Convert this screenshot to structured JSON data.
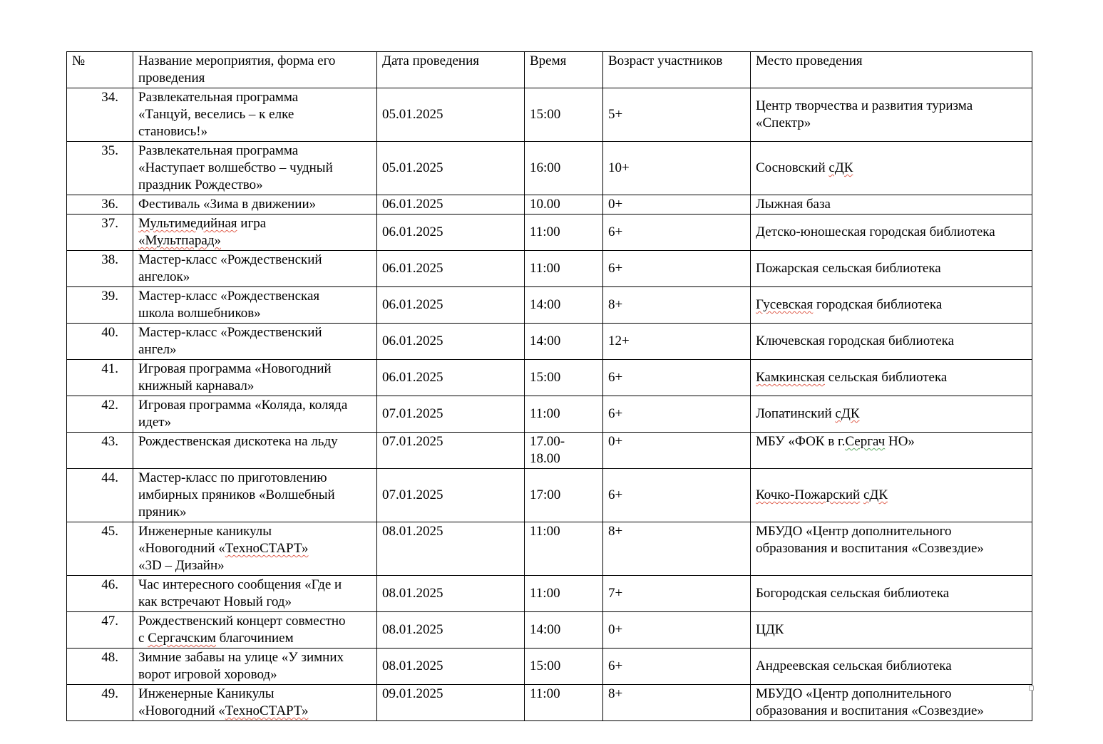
{
  "colors": {
    "page_background": "#ffffff",
    "text": "#000000",
    "table_border": "#000000",
    "spellcheck_red": "#e0604f",
    "grammar_green": "#5aa860",
    "resize_handle_border": "#a6a6a6"
  },
  "table": {
    "headers": [
      "№",
      "Название мероприятия, форма его проведения",
      "Дата проведения",
      "Время",
      "Возраст участников",
      "Место проведения"
    ],
    "rows": [
      {
        "num": "34.",
        "title": [
          [
            {
              "t": "Развлекательная программа"
            }
          ],
          [
            {
              "t": "«Танцуй, веселись – к елке"
            }
          ],
          [
            {
              "t": "становись!»"
            }
          ]
        ],
        "date": "05.01.2025",
        "time": [
          "15:00"
        ],
        "age": "5+",
        "place": [
          [
            {
              "t": "Центр творчества и развития туризма"
            }
          ],
          [
            {
              "t": "«Спектр»"
            }
          ]
        ]
      },
      {
        "num": "35.",
        "title": [
          [
            {
              "t": "Развлекательная программа"
            }
          ],
          [
            {
              "t": "«Наступает волшебство – чудный"
            }
          ],
          [
            {
              "t": "праздник Рождество»"
            }
          ]
        ],
        "date": "05.01.2025",
        "time": [
          "16:00"
        ],
        "age": "10+",
        "place": [
          [
            {
              "t": "Сосновский "
            },
            {
              "t": "сДК",
              "m": "red"
            }
          ]
        ]
      },
      {
        "num": "36.",
        "title": [
          [
            {
              "t": "Фестиваль «Зима в движении»"
            }
          ]
        ],
        "date": "06.01.2025",
        "time": [
          "10.00"
        ],
        "age": "0+",
        "place": [
          [
            {
              "t": "Лыжная база"
            }
          ]
        ]
      },
      {
        "num": "37.",
        "title": [
          [
            {
              "t": "Мультимедийная",
              "m": "red"
            },
            {
              "t": " игра"
            }
          ],
          [
            {
              "t": "«Мультпарад»",
              "m": "red"
            }
          ]
        ],
        "date": "06.01.2025",
        "time": [
          "11:00"
        ],
        "age": "6+",
        "place": [
          [
            {
              "t": "Детско-юношеская городская библиотека"
            }
          ]
        ]
      },
      {
        "num": "38.",
        "title": [
          [
            {
              "t": "Мастер-класс «Рождественский"
            }
          ],
          [
            {
              "t": "ангелок»"
            }
          ]
        ],
        "date": "06.01.2025",
        "time": [
          "11:00"
        ],
        "age": "6+",
        "place": [
          [
            {
              "t": "Пожарская сельская библиотека"
            }
          ]
        ]
      },
      {
        "num": "39.",
        "title": [
          [
            {
              "t": "Мастер-класс «Рождественская"
            }
          ],
          [
            {
              "t": "школа волшебников»"
            }
          ]
        ],
        "date": "06.01.2025",
        "time": [
          "14:00"
        ],
        "age": "8+",
        "place": [
          [
            {
              "t": "Гусевская",
              "m": "red"
            },
            {
              "t": " городская библиотека"
            }
          ]
        ]
      },
      {
        "num": "40.",
        "title": [
          [
            {
              "t": "Мастер-класс «Рождественский"
            }
          ],
          [
            {
              "t": "ангел»"
            }
          ]
        ],
        "date": "06.01.2025",
        "time": [
          "14:00"
        ],
        "age": "12+",
        "place": [
          [
            {
              "t": "Ключевская городская библиотека"
            }
          ]
        ]
      },
      {
        "num": "41.",
        "title": [
          [
            {
              "t": "Игровая программа «Новогодний"
            }
          ],
          [
            {
              "t": "книжный карнавал»"
            }
          ]
        ],
        "date": "06.01.2025",
        "time": [
          "15:00"
        ],
        "age": "6+",
        "place": [
          [
            {
              "t": "Камкинская",
              "m": "red"
            },
            {
              "t": " сельская библиотека"
            }
          ]
        ]
      },
      {
        "num": "42.",
        "title": [
          [
            {
              "t": "Игровая программа «Коляда, коляда"
            }
          ],
          [
            {
              "t": "идет»"
            }
          ]
        ],
        "date": "07.01.2025",
        "time": [
          "11:00"
        ],
        "age": "6+",
        "place": [
          [
            {
              "t": "Лопатинский "
            },
            {
              "t": "сДК",
              "m": "red"
            }
          ]
        ]
      },
      {
        "num": "43.",
        "valign": "top",
        "title": [
          [
            {
              "t": "Рождественская дискотека на льду"
            }
          ]
        ],
        "date": "07.01.2025",
        "time": [
          "17.00-",
          "18.00"
        ],
        "age": "0+",
        "place": [
          [
            {
              "t": "МБУ «ФОК в г."
            },
            {
              "t": "Сергач",
              "m": "green"
            },
            {
              "t": " НО»"
            }
          ]
        ]
      },
      {
        "num": "44.",
        "title": [
          [
            {
              "t": "Мастер-класс по приготовлению"
            }
          ],
          [
            {
              "t": "имбирных пряников «Волшебный"
            }
          ],
          [
            {
              "t": "пряник»"
            }
          ]
        ],
        "date": "07.01.2025",
        "time": [
          "17:00"
        ],
        "age": "6+",
        "place": [
          [
            {
              "t": "Кочко-Пожарский",
              "m": "red"
            },
            {
              "t": " "
            },
            {
              "t": "сДК",
              "m": "red"
            }
          ]
        ]
      },
      {
        "num": "45.",
        "valign": "top",
        "title": [
          [
            {
              "t": "Инженерные каникулы"
            }
          ],
          [
            {
              "t": "«Новогодний «"
            },
            {
              "t": "ТехноСТАРТ»",
              "m": "red"
            }
          ],
          [
            {
              "t": "«3D – Дизайн»"
            }
          ]
        ],
        "date": "08.01.2025",
        "time": [
          "11:00"
        ],
        "age": "8+",
        "place": [
          [
            {
              "t": "МБУДО «Центр дополнительного"
            }
          ],
          [
            {
              "t": "образования и воспитания «Созвездие»"
            }
          ]
        ]
      },
      {
        "num": "46.",
        "title": [
          [
            {
              "t": "Час интересного сообщения «Где и"
            }
          ],
          [
            {
              "t": "как встречают Новый год»"
            }
          ]
        ],
        "date": "08.01.2025",
        "time": [
          "11:00"
        ],
        "age": "7+",
        "place": [
          [
            {
              "t": "Богородская сельская библиотека"
            }
          ]
        ]
      },
      {
        "num": "47.",
        "title": [
          [
            {
              "t": "Рождественский концерт совместно"
            }
          ],
          [
            {
              "t": "с "
            },
            {
              "t": "Сергачским",
              "m": "red"
            },
            {
              "t": " благочинием"
            }
          ]
        ],
        "date": "08.01.2025",
        "time": [
          "14:00"
        ],
        "age": "0+",
        "place": [
          [
            {
              "t": "ЦДК"
            }
          ]
        ]
      },
      {
        "num": "48.",
        "title": [
          [
            {
              "t": "Зимние забавы на улице «У зимних"
            }
          ],
          [
            {
              "t": "ворот игровой хоровод»"
            }
          ]
        ],
        "date": "08.01.2025",
        "time": [
          "15:00"
        ],
        "age": "6+",
        "place": [
          [
            {
              "t": "Андреевская сельская библиотека"
            }
          ]
        ]
      },
      {
        "num": "49.",
        "valign": "top",
        "title": [
          [
            {
              "t": "Инженерные Каникулы"
            }
          ],
          [
            {
              "t": "«Новогодний «"
            },
            {
              "t": "ТехноСТАРТ»",
              "m": "red"
            }
          ]
        ],
        "date": "09.01.2025",
        "time": [
          "11:00"
        ],
        "age": "8+",
        "place": [
          [
            {
              "t": "МБУДО «Центр дополнительного"
            }
          ],
          [
            {
              "t": "образования и воспитания «Созвездие»"
            }
          ]
        ]
      }
    ]
  }
}
